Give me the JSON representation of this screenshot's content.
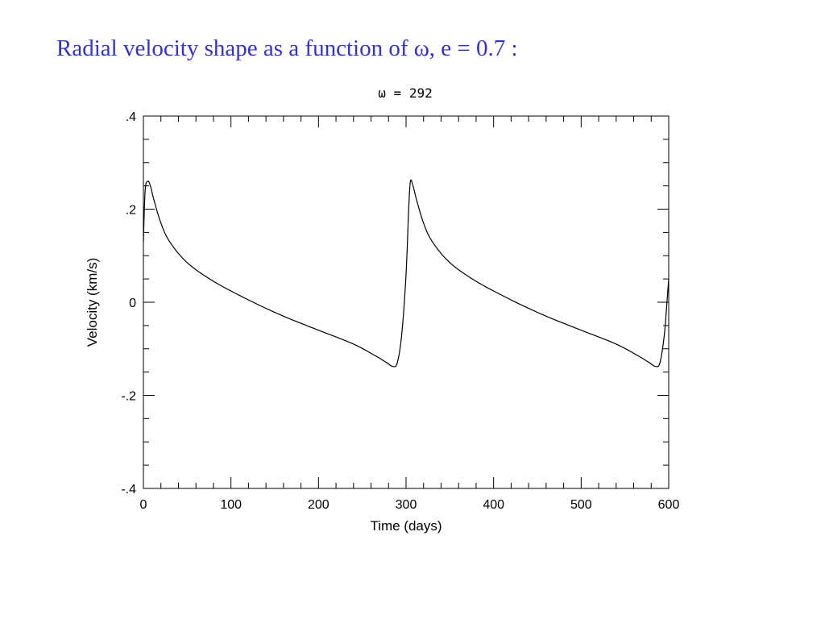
{
  "slide": {
    "title": "Radial velocity shape as a function of ω, e = 0.7 :"
  },
  "chart_data": {
    "type": "line",
    "title": "ω = 292",
    "xlabel": "Time (days)",
    "ylabel": "Velocity (km/s)",
    "xlim": [
      0,
      600
    ],
    "ylim": [
      -0.4,
      0.4
    ],
    "x_ticks": [
      0,
      100,
      200,
      300,
      400,
      500,
      600
    ],
    "x_tick_labels": [
      "0",
      "100",
      "200",
      "300",
      "400",
      "500",
      "600"
    ],
    "y_ticks": [
      -0.4,
      -0.2,
      0,
      0.2,
      0.4
    ],
    "y_tick_labels": [
      "-.4",
      "-.2",
      "0",
      ".2",
      ".4"
    ],
    "grid": false,
    "series": [
      {
        "color": "#000000",
        "x": [
          0,
          2,
          5,
          8,
          12,
          20,
          30,
          50,
          80,
          120,
          160,
          200,
          240,
          265,
          278,
          285,
          290,
          295,
          300,
          303,
          305,
          308,
          312,
          320,
          330,
          350,
          380,
          420,
          460,
          500,
          540,
          565,
          578,
          585,
          590,
          595,
          598,
          600
        ],
        "y": [
          0.13,
          0.24,
          0.26,
          0.25,
          0.22,
          0.17,
          0.13,
          0.085,
          0.045,
          0.005,
          -0.03,
          -0.06,
          -0.09,
          -0.115,
          -0.13,
          -0.138,
          -0.13,
          -0.07,
          0.06,
          0.2,
          0.26,
          0.25,
          0.22,
          0.17,
          0.13,
          0.085,
          0.045,
          0.005,
          -0.03,
          -0.06,
          -0.09,
          -0.115,
          -0.13,
          -0.138,
          -0.13,
          -0.07,
          0.0,
          0.05
        ]
      }
    ]
  }
}
